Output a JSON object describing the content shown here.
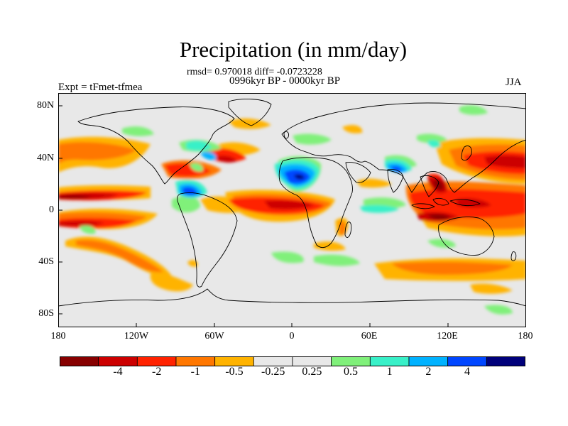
{
  "title": "Precipitation (in mm/day)",
  "stats_line": "rmsd= 0.970018 diff= -0.0723228",
  "period_line": "0996kyr BP - 0000kyr BP",
  "experiment": "Expt = tFmet-tfmea",
  "season": "JJA",
  "lat_labels": [
    "80N",
    "40N",
    "0",
    "40S",
    "80S"
  ],
  "lon_labels": [
    "180",
    "120W",
    "60W",
    "0",
    "60E",
    "120E",
    "180"
  ],
  "colorbar": {
    "colors": [
      "#870000",
      "#cc0000",
      "#ff2200",
      "#ff7700",
      "#ffb300",
      "#e8e8e8",
      "#e8e8e8",
      "#80f07a",
      "#38f0c8",
      "#00b2ff",
      "#0046ff",
      "#00007a"
    ],
    "labels": [
      "-4",
      "-2",
      "-1",
      "-0.5",
      "-0.25",
      "0.25",
      "0.5",
      "1",
      "2",
      "4"
    ]
  },
  "colors": {
    "background": "#e8e8e8",
    "coast": "#000000"
  }
}
